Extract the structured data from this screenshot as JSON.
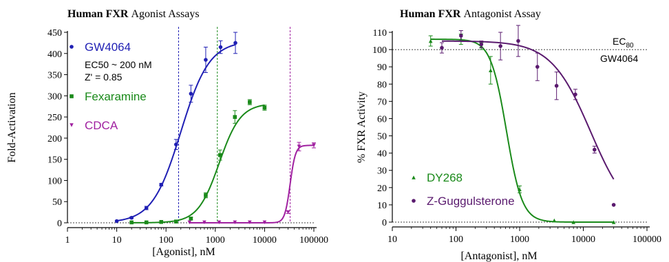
{
  "chart_data": [
    {
      "type": "scatter",
      "title_bold": "Human FXR",
      "title_rest": " Agonist Assays",
      "xlabel": "[Agonist], nM",
      "ylabel": "Fold-Activation",
      "x_scale": "log",
      "xlim": [
        1,
        100000
      ],
      "ylim": [
        0,
        450
      ],
      "x_ticks": [
        1,
        10,
        100,
        1000,
        10000,
        100000
      ],
      "x_tick_labels": [
        "1",
        "10",
        "100",
        "1000",
        "10000",
        "100000"
      ],
      "y_ticks": [
        0,
        50,
        100,
        150,
        200,
        250,
        300,
        350,
        400,
        450
      ],
      "y_tick_labels": [
        "0",
        "50",
        "100",
        "150",
        "200",
        "250",
        "300",
        "350",
        "400",
        "450"
      ],
      "baseline": 0,
      "annotations": [
        "EC50 ~ 200 nM",
        "Z' = 0.85"
      ],
      "series": [
        {
          "name": "GW4064",
          "color": "#1f1fb4",
          "marker": "circle",
          "points": [
            [
              10,
              4
            ],
            [
              20,
              12
            ],
            [
              40,
              35
            ],
            [
              80,
              90
            ],
            [
              160,
              185
            ],
            [
              320,
              305
            ],
            [
              640,
              385
            ],
            [
              1280,
              415
            ],
            [
              2560,
              425
            ]
          ],
          "errors": [
            1,
            2,
            4,
            3,
            12,
            20,
            30,
            15,
            25
          ],
          "fit": {
            "bottom": 0,
            "top": 430,
            "ec50": 200,
            "hill": 1.5
          },
          "vline": 180
        },
        {
          "name": "Fexaramine",
          "color": "#1a8a1a",
          "marker": "square",
          "points": [
            [
              20,
              1
            ],
            [
              40,
              1
            ],
            [
              80,
              2
            ],
            [
              160,
              3
            ],
            [
              320,
              10
            ],
            [
              640,
              65
            ],
            [
              1250,
              160
            ],
            [
              2500,
              250
            ],
            [
              5000,
              285
            ],
            [
              10000,
              272
            ]
          ],
          "errors": [
            1,
            1,
            1,
            1,
            3,
            6,
            12,
            15,
            6,
            6
          ],
          "fit": {
            "bottom": 0,
            "top": 282,
            "ec50": 1200,
            "hill": 2
          },
          "vline": 1100
        },
        {
          "name": "CDCA",
          "color": "#a020a0",
          "marker": "triangle-down",
          "points": [
            [
              300,
              1
            ],
            [
              600,
              1
            ],
            [
              1200,
              1
            ],
            [
              2500,
              1
            ],
            [
              5000,
              1
            ],
            [
              10000,
              1
            ],
            [
              30000,
              25
            ],
            [
              50000,
              180
            ],
            [
              100000,
              183
            ]
          ],
          "errors": [
            1,
            1,
            1,
            1,
            1,
            1,
            3,
            10,
            6
          ],
          "fit": {
            "bottom": 0,
            "top": 183,
            "ec50": 33000,
            "hill": 8
          },
          "vline": 33000
        }
      ]
    },
    {
      "type": "scatter",
      "title_bold": "Human FXR",
      "title_rest": " Antagonist Assay",
      "xlabel": "[Antagonist], nM",
      "ylabel": "% FXR Activity",
      "x_scale": "log",
      "xlim": [
        10,
        100000
      ],
      "ylim": [
        0,
        110
      ],
      "x_ticks": [
        10,
        100,
        1000,
        10000,
        100000
      ],
      "x_tick_labels": [
        "10",
        "100",
        "1000",
        "10000",
        "100000"
      ],
      "y_ticks": [
        0,
        10,
        20,
        30,
        40,
        50,
        60,
        70,
        80,
        90,
        100,
        110
      ],
      "y_tick_labels": [
        "0",
        "10",
        "20",
        "30",
        "40",
        "50",
        "60",
        "70",
        "80",
        "90",
        "100",
        "110"
      ],
      "hlines": [
        100,
        0
      ],
      "annotations": [
        "EC",
        "80",
        "GW4064"
      ],
      "series": [
        {
          "name": "DY268",
          "color": "#1a8a1a",
          "marker": "triangle-up",
          "points": [
            [
              40,
              105
            ],
            [
              120,
              106
            ],
            [
              250,
              102
            ],
            [
              350,
              88
            ],
            [
              1000,
              19
            ],
            [
              3500,
              1
            ],
            [
              7000,
              0
            ],
            [
              30000,
              0
            ]
          ],
          "errors": [
            3,
            3,
            2,
            8,
            2,
            1,
            1,
            1
          ],
          "fit": {
            "bottom": 0,
            "top": 106,
            "ec50": 620,
            "hill": 3.5
          }
        },
        {
          "name": "Z-Guggulsterone",
          "color": "#5a1a6e",
          "marker": "circle",
          "points": [
            [
              60,
              101
            ],
            [
              120,
              108
            ],
            [
              250,
              103
            ],
            [
              500,
              102
            ],
            [
              950,
              105
            ],
            [
              1900,
              90
            ],
            [
              3800,
              79
            ],
            [
              7500,
              74
            ],
            [
              15000,
              42
            ],
            [
              30000,
              10
            ]
          ],
          "errors": [
            3,
            3,
            2,
            8,
            9,
            8,
            8,
            3,
            2,
            1
          ],
          "fit": {
            "bottom": 0,
            "top": 105,
            "ec50": 13000,
            "hill": 1.4
          }
        }
      ]
    }
  ]
}
